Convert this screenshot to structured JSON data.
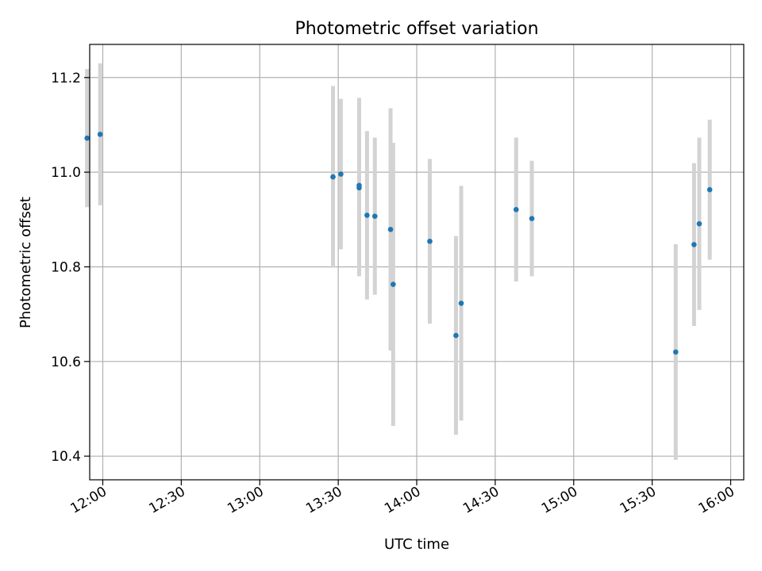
{
  "chart_data": {
    "type": "scatter",
    "title": "Photometric offset variation",
    "xlabel": "UTC time",
    "ylabel": "Photometric offset",
    "x_range": [
      "11:55",
      "16:05"
    ],
    "ylim": [
      10.35,
      11.27
    ],
    "grid": true,
    "x_ticks": [
      "12:00",
      "12:30",
      "13:00",
      "13:30",
      "14:00",
      "14:30",
      "15:00",
      "15:30",
      "16:00"
    ],
    "y_ticks": [
      10.4,
      10.6,
      10.8,
      11.0,
      11.2
    ],
    "colors": {
      "point": "#1f77b4",
      "errorbar": "#d3d3d3",
      "grid": "#b0b0b0"
    },
    "points": [
      {
        "x": "11:54",
        "y": 11.072,
        "err": 0.146
      },
      {
        "x": "11:59",
        "y": 11.08,
        "err": 0.15
      },
      {
        "x": "13:28",
        "y": 10.99,
        "err": 0.192
      },
      {
        "x": "13:31",
        "y": 10.996,
        "err": 0.159
      },
      {
        "x": "13:38",
        "y": 10.972,
        "err": 0.185
      },
      {
        "x": "13:38",
        "y": 10.967,
        "err": 0.187
      },
      {
        "x": "13:41",
        "y": 10.909,
        "err": 0.178
      },
      {
        "x": "13:44",
        "y": 10.907,
        "err": 0.166
      },
      {
        "x": "13:50",
        "y": 10.879,
        "err": 0.256
      },
      {
        "x": "13:51",
        "y": 10.763,
        "err": 0.299
      },
      {
        "x": "14:05",
        "y": 10.854,
        "err": 0.174
      },
      {
        "x": "14:15",
        "y": 10.655,
        "err": 0.21
      },
      {
        "x": "14:17",
        "y": 10.723,
        "err": 0.248
      },
      {
        "x": "14:38",
        "y": 10.921,
        "err": 0.152
      },
      {
        "x": "14:44",
        "y": 10.902,
        "err": 0.122
      },
      {
        "x": "15:39",
        "y": 10.62,
        "err": 0.228
      },
      {
        "x": "15:46",
        "y": 10.847,
        "err": 0.172
      },
      {
        "x": "15:48",
        "y": 10.891,
        "err": 0.182
      },
      {
        "x": "15:52",
        "y": 10.963,
        "err": 0.148
      }
    ]
  }
}
